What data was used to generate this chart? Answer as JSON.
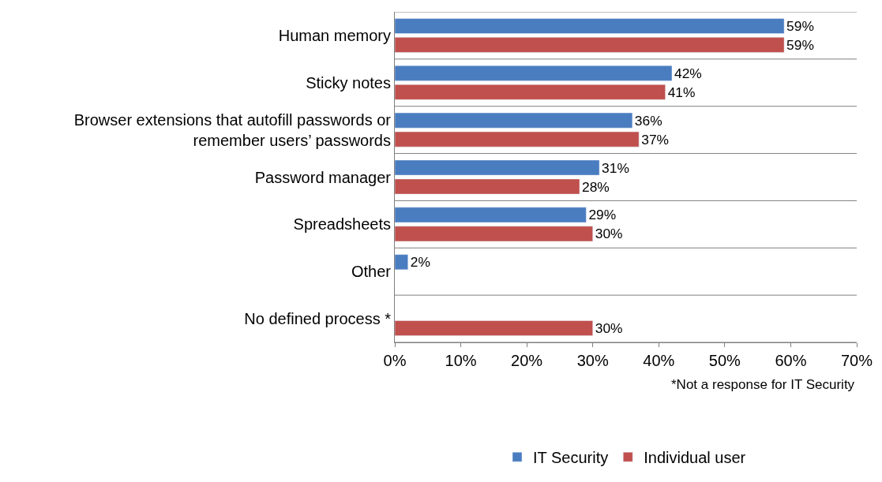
{
  "chart_data": {
    "type": "bar",
    "orientation": "horizontal",
    "categories": [
      "Human memory",
      "Sticky notes",
      "Browser extensions that autofill passwords or\nremember users’ passwords",
      "Password manager",
      "Spreadsheets",
      "Other",
      "No defined process *"
    ],
    "series": [
      {
        "name": "IT Security",
        "color": "#4a7cc0",
        "values": [
          59,
          42,
          36,
          31,
          29,
          2,
          null
        ],
        "value_labels": [
          "59%",
          "42%",
          "36%",
          "31%",
          "29%",
          "2%",
          null
        ]
      },
      {
        "name": "Individual user",
        "color": "#c0504d",
        "values": [
          59,
          41,
          37,
          28,
          30,
          null,
          30
        ],
        "value_labels": [
          "59%",
          "41%",
          "37%",
          "28%",
          "30%",
          null,
          "30%"
        ]
      }
    ],
    "xlim": [
      0,
      70
    ],
    "xticks": [
      {
        "value": 0,
        "label": "0%"
      },
      {
        "value": 10,
        "label": "10%"
      },
      {
        "value": 20,
        "label": "20%"
      },
      {
        "value": 30,
        "label": "30%"
      },
      {
        "value": 40,
        "label": "40%"
      },
      {
        "value": 50,
        "label": "50%"
      },
      {
        "value": 60,
        "label": "60%"
      },
      {
        "value": 70,
        "label": "70%"
      }
    ],
    "grid": "y",
    "legend": "bottom",
    "annotations": [
      "*Not a response for IT Security"
    ]
  }
}
